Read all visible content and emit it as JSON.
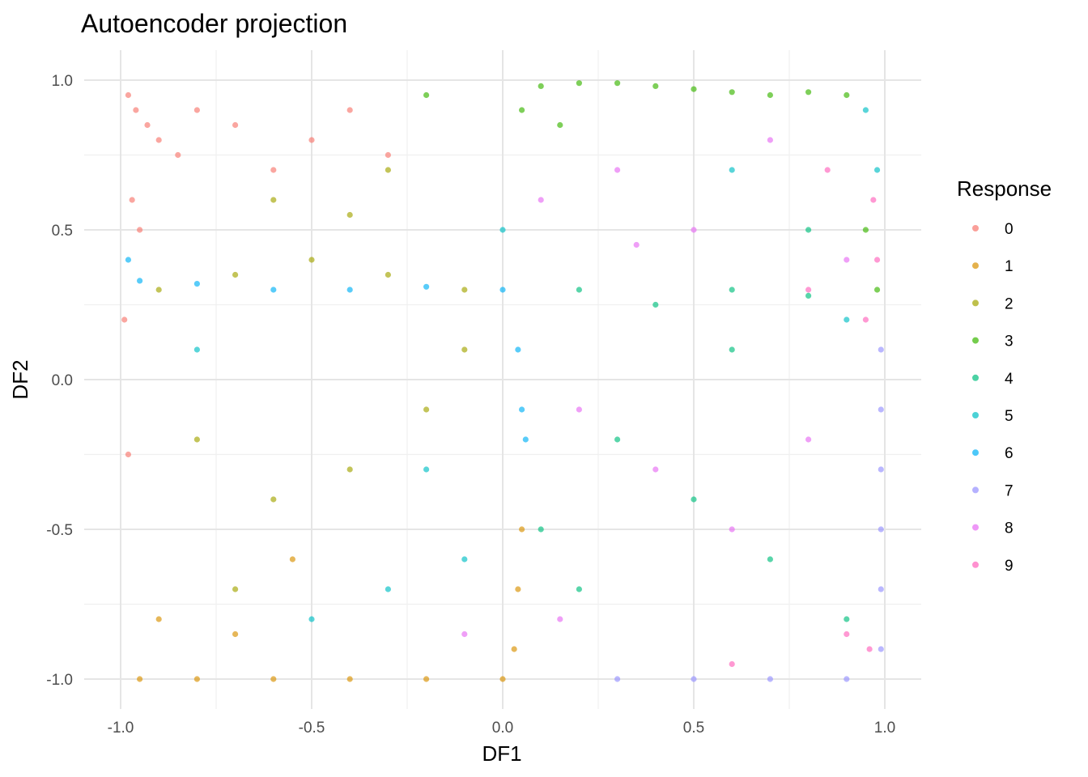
{
  "chart_data": {
    "type": "scatter",
    "title": "Autoencoder projection",
    "xlabel": "DF1",
    "ylabel": "DF2",
    "xlim": [
      -1.0,
      1.0
    ],
    "ylim": [
      -1.0,
      1.0
    ],
    "x_ticks": [
      -1.0,
      -0.5,
      0.0,
      0.5,
      1.0
    ],
    "y_ticks": [
      -1.0,
      -0.5,
      0.0,
      0.5,
      1.0
    ],
    "x_tick_labels": [
      "-1.0",
      "-0.5",
      "0.0",
      "0.5",
      "1.0"
    ],
    "y_tick_labels": [
      "-1.0",
      "-0.5",
      "0.0",
      "0.5",
      "1.0"
    ],
    "grid": true,
    "legend": {
      "title": "Response",
      "placement": "right"
    },
    "series": [
      {
        "name": "0",
        "color": "#F8766D",
        "values": [
          [
            -0.98,
            0.95
          ],
          [
            -0.96,
            0.9
          ],
          [
            -0.93,
            0.85
          ],
          [
            -0.9,
            0.8
          ],
          [
            -0.85,
            0.75
          ],
          [
            -0.8,
            0.9
          ],
          [
            -0.7,
            0.85
          ],
          [
            -0.6,
            0.7
          ],
          [
            -0.5,
            0.8
          ],
          [
            -0.4,
            0.9
          ],
          [
            -0.3,
            0.75
          ],
          [
            -0.97,
            0.6
          ],
          [
            -0.95,
            0.5
          ],
          [
            -0.99,
            0.2
          ],
          [
            -0.98,
            -0.25
          ]
        ]
      },
      {
        "name": "1",
        "color": "#D89000",
        "values": [
          [
            -0.95,
            -1.0
          ],
          [
            -0.8,
            -1.0
          ],
          [
            -0.6,
            -1.0
          ],
          [
            -0.4,
            -1.0
          ],
          [
            -0.2,
            -1.0
          ],
          [
            0.0,
            -1.0
          ],
          [
            0.03,
            -0.9
          ],
          [
            0.04,
            -0.7
          ],
          [
            0.05,
            -0.5
          ],
          [
            -0.9,
            -0.8
          ],
          [
            -0.7,
            -0.85
          ],
          [
            -0.55,
            -0.6
          ]
        ]
      },
      {
        "name": "2",
        "color": "#A3A500",
        "values": [
          [
            -0.9,
            0.3
          ],
          [
            -0.7,
            0.35
          ],
          [
            -0.5,
            0.4
          ],
          [
            -0.3,
            0.35
          ],
          [
            -0.1,
            0.3
          ],
          [
            -0.6,
            0.6
          ],
          [
            -0.4,
            0.55
          ],
          [
            -0.8,
            -0.2
          ],
          [
            -0.6,
            -0.4
          ],
          [
            -0.4,
            -0.3
          ],
          [
            -0.2,
            -0.1
          ],
          [
            -0.7,
            -0.7
          ],
          [
            -0.3,
            0.7
          ],
          [
            -0.1,
            0.1
          ]
        ]
      },
      {
        "name": "3",
        "color": "#39B600",
        "values": [
          [
            0.1,
            0.98
          ],
          [
            0.2,
            0.99
          ],
          [
            0.3,
            0.99
          ],
          [
            0.4,
            0.98
          ],
          [
            0.5,
            0.97
          ],
          [
            0.6,
            0.96
          ],
          [
            0.7,
            0.95
          ],
          [
            0.8,
            0.96
          ],
          [
            0.9,
            0.95
          ],
          [
            0.05,
            0.9
          ],
          [
            0.15,
            0.85
          ],
          [
            -0.2,
            0.95
          ],
          [
            0.95,
            0.5
          ],
          [
            0.98,
            0.3
          ]
        ]
      },
      {
        "name": "4",
        "color": "#00BF7D",
        "values": [
          [
            0.2,
            0.3
          ],
          [
            0.4,
            0.25
          ],
          [
            0.6,
            0.3
          ],
          [
            0.8,
            0.28
          ],
          [
            0.3,
            -0.2
          ],
          [
            0.5,
            -0.4
          ],
          [
            0.7,
            -0.6
          ],
          [
            0.9,
            -0.8
          ],
          [
            0.2,
            -0.7
          ],
          [
            0.6,
            0.1
          ],
          [
            0.8,
            0.5
          ],
          [
            0.1,
            -0.5
          ]
        ]
      },
      {
        "name": "5",
        "color": "#00BFC4",
        "values": [
          [
            -0.5,
            -0.8
          ],
          [
            -0.3,
            -0.7
          ],
          [
            -0.1,
            -0.6
          ],
          [
            0.0,
            0.5
          ],
          [
            0.95,
            0.9
          ],
          [
            0.98,
            0.7
          ],
          [
            -0.2,
            -0.3
          ],
          [
            -0.8,
            0.1
          ],
          [
            0.6,
            0.7
          ],
          [
            0.9,
            0.2
          ]
        ]
      },
      {
        "name": "6",
        "color": "#00B0F6",
        "values": [
          [
            -0.95,
            0.33
          ],
          [
            -0.8,
            0.32
          ],
          [
            -0.6,
            0.3
          ],
          [
            -0.4,
            0.3
          ],
          [
            -0.2,
            0.31
          ],
          [
            0.0,
            0.3
          ],
          [
            0.04,
            0.1
          ],
          [
            0.05,
            -0.1
          ],
          [
            0.06,
            -0.2
          ],
          [
            -0.98,
            0.4
          ]
        ]
      },
      {
        "name": "7",
        "color": "#9590FF",
        "values": [
          [
            0.99,
            -0.9
          ],
          [
            0.99,
            -0.7
          ],
          [
            0.99,
            -0.5
          ],
          [
            0.99,
            -0.3
          ],
          [
            0.99,
            -0.1
          ],
          [
            0.99,
            0.1
          ],
          [
            0.9,
            -1.0
          ],
          [
            0.7,
            -1.0
          ],
          [
            0.5,
            -1.0
          ],
          [
            0.3,
            -1.0
          ]
        ]
      },
      {
        "name": "8",
        "color": "#E76BF3",
        "values": [
          [
            0.1,
            0.6
          ],
          [
            0.3,
            0.7
          ],
          [
            0.5,
            0.5
          ],
          [
            0.7,
            0.8
          ],
          [
            0.9,
            0.4
          ],
          [
            0.2,
            -0.1
          ],
          [
            0.4,
            -0.3
          ],
          [
            0.6,
            -0.5
          ],
          [
            0.8,
            -0.2
          ],
          [
            0.15,
            -0.8
          ],
          [
            -0.1,
            -0.85
          ],
          [
            0.35,
            0.45
          ]
        ]
      },
      {
        "name": "9",
        "color": "#FF62BC",
        "values": [
          [
            0.97,
            0.6
          ],
          [
            0.98,
            0.4
          ],
          [
            0.95,
            0.2
          ],
          [
            0.96,
            -0.9
          ],
          [
            0.9,
            -0.85
          ],
          [
            0.8,
            0.3
          ],
          [
            0.6,
            -0.95
          ],
          [
            0.85,
            0.7
          ]
        ]
      }
    ]
  }
}
